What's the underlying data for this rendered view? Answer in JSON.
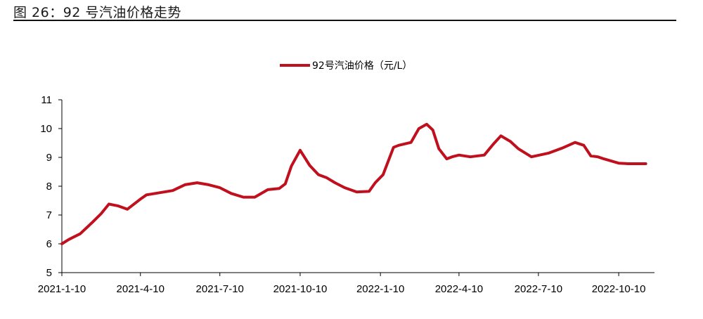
{
  "figure_title": "图 26：92 号汽油价格走势",
  "colors": {
    "series": "#c0101e",
    "axis": "#000000"
  },
  "chart_data": {
    "type": "line",
    "title": "",
    "xlabel": "",
    "ylabel": "",
    "ylim": [
      5,
      11
    ],
    "yticks": [
      "5",
      "6",
      "7",
      "8",
      "9",
      "10",
      "11"
    ],
    "xlim": [
      "2021-01-10",
      "2022-11-20"
    ],
    "xticks": [
      "2021-1-10",
      "2021-4-10",
      "2021-7-10",
      "2021-10-10",
      "2022-1-10",
      "2022-4-10",
      "2022-7-10",
      "2022-10-10"
    ],
    "xtick_dates": [
      "2021-01-10",
      "2021-04-10",
      "2021-07-10",
      "2021-10-10",
      "2022-01-10",
      "2022-04-10",
      "2022-07-10",
      "2022-10-10"
    ],
    "legend_position": "top-center",
    "grid": false,
    "series": [
      {
        "name": "92号汽油价格（元/L）",
        "color": "#c0101e",
        "x": [
          "2021-01-10",
          "2021-01-18",
          "2021-01-31",
          "2021-02-14",
          "2021-02-24",
          "2021-03-05",
          "2021-03-15",
          "2021-03-26",
          "2021-04-10",
          "2021-04-17",
          "2021-04-27",
          "2021-05-17",
          "2021-05-31",
          "2021-06-14",
          "2021-06-27",
          "2021-07-10",
          "2021-07-23",
          "2021-08-06",
          "2021-08-19",
          "2021-09-03",
          "2021-09-16",
          "2021-09-23",
          "2021-09-30",
          "2021-10-10",
          "2021-10-21",
          "2021-10-31",
          "2021-11-09",
          "2021-11-19",
          "2021-11-30",
          "2021-12-14",
          "2021-12-28",
          "2022-01-04",
          "2022-01-13",
          "2022-01-25",
          "2022-01-31",
          "2022-02-14",
          "2022-02-23",
          "2022-03-04",
          "2022-03-11",
          "2022-03-18",
          "2022-03-27",
          "2022-04-02",
          "2022-04-10",
          "2022-04-23",
          "2022-05-09",
          "2022-05-19",
          "2022-05-28",
          "2022-06-08",
          "2022-06-17",
          "2022-07-02",
          "2022-07-22",
          "2022-08-06",
          "2022-08-21",
          "2022-08-31",
          "2022-09-08",
          "2022-09-16",
          "2022-09-23",
          "2022-10-10",
          "2022-10-21",
          "2022-11-01",
          "2022-11-10"
        ],
        "y": [
          6.0,
          6.15,
          6.35,
          6.75,
          7.05,
          7.38,
          7.32,
          7.2,
          7.55,
          7.7,
          7.75,
          7.85,
          8.05,
          8.12,
          8.05,
          7.95,
          7.75,
          7.62,
          7.62,
          7.88,
          7.92,
          8.08,
          8.7,
          9.25,
          8.72,
          8.4,
          8.3,
          8.12,
          7.95,
          7.8,
          7.82,
          8.12,
          8.4,
          9.35,
          9.42,
          9.52,
          10.0,
          10.15,
          9.95,
          9.3,
          8.95,
          9.02,
          9.08,
          9.02,
          9.08,
          9.45,
          9.75,
          9.55,
          9.3,
          9.02,
          9.15,
          9.32,
          9.52,
          9.42,
          9.05,
          9.02,
          8.95,
          8.8,
          8.78,
          8.78,
          8.78
        ]
      }
    ]
  }
}
